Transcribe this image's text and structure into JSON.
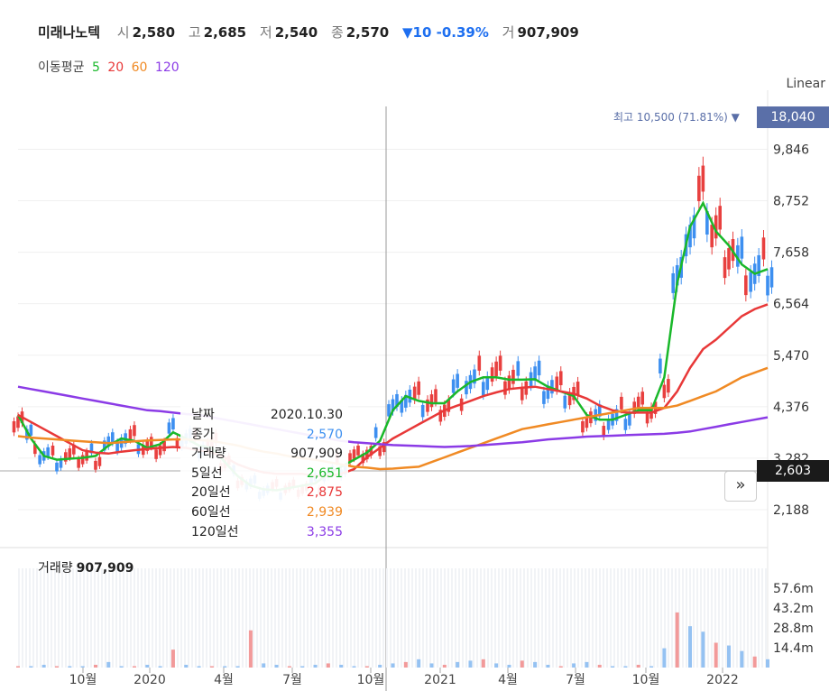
{
  "header": {
    "name": "미래나노텍",
    "open_label": "시",
    "open": "2,580",
    "high_label": "고",
    "high": "2,685",
    "low_label": "저",
    "low": "2,540",
    "close_label": "종",
    "close": "2,570",
    "change": "▼10 -0.39%",
    "volume_label": "거",
    "volume": "907,909"
  },
  "ma_legend": {
    "title": "이동평균",
    "p5": "5",
    "p20": "20",
    "p60": "60",
    "p120": "120"
  },
  "scale_mode": "Linear",
  "colors": {
    "up": "#e8403f",
    "down": "#3d8ff0",
    "ma5": "#19b82a",
    "ma20": "#e83838",
    "ma60": "#f08a24",
    "ma120": "#8b3be6",
    "high_tag": "#5a6fa8",
    "current_tag": "#1a1a1a"
  },
  "price_tags": {
    "high": "18,040",
    "current": "2,603"
  },
  "high_marker": {
    "label": "최고",
    "value": "10,500 (71.81%)"
  },
  "tooltip": {
    "rows": [
      {
        "label": "날짜",
        "value": "2020.10.30"
      },
      {
        "label": "종가",
        "value": "2,570"
      },
      {
        "label": "거래량",
        "value": "907,909"
      },
      {
        "label": "5일선",
        "value": "2,651"
      },
      {
        "label": "20일선",
        "value": "2,875"
      },
      {
        "label": "60일선",
        "value": "2,939"
      },
      {
        "label": "120일선",
        "value": "3,355"
      }
    ]
  },
  "volume_panel": {
    "label": "거래량",
    "value": "907,909"
  },
  "chart_data": {
    "type": "line",
    "price_ticks": [
      "9,846",
      "8,752",
      "7,658",
      "6,564",
      "5,470",
      "4,376",
      "3,282",
      "2,188"
    ],
    "volume_ticks": [
      "57.6m",
      "43.2m",
      "28.8m",
      "14.4m"
    ],
    "x_ticks": [
      "10월",
      "2020",
      "4월",
      "7월",
      "10월",
      "2021",
      "4월",
      "7월",
      "10월",
      "2022"
    ],
    "ylim": [
      1900,
      10400
    ],
    "volume_ylim": [
      0,
      72
    ],
    "series": [
      {
        "name": "5",
        "values": [
          4200,
          3700,
          3330,
          3250,
          3270,
          3290,
          3330,
          3550,
          3700,
          3650,
          3500,
          3580,
          3830,
          3700,
          3550,
          3500,
          3200,
          2900,
          2700,
          2620,
          2600,
          2650,
          2700,
          2750,
          2950,
          3100,
          3250,
          3400,
          3650,
          4300,
          4600,
          4500,
          4450,
          4450,
          4700,
          4900,
          5000,
          5000,
          4950,
          4950,
          4960,
          4800,
          4700,
          4600,
          4200,
          4100,
          4100,
          4200,
          4300,
          4300,
          5000,
          7000,
          8200,
          8700,
          8100,
          7800,
          7400,
          7200,
          7300
        ]
      },
      {
        "name": "20",
        "values": [
          4200,
          4050,
          3900,
          3750,
          3600,
          3450,
          3400,
          3380,
          3420,
          3450,
          3480,
          3500,
          3520,
          3500,
          3450,
          3400,
          3300,
          3150,
          3050,
          2980,
          2950,
          2950,
          2950,
          2900,
          2900,
          2950,
          3050,
          3300,
          3500,
          3700,
          3850,
          4000,
          4150,
          4300,
          4400,
          4500,
          4600,
          4680,
          4750,
          4780,
          4800,
          4750,
          4700,
          4650,
          4550,
          4400,
          4300,
          4250,
          4250,
          4250,
          4350,
          4700,
          5200,
          5600,
          5800,
          6050,
          6300,
          6450,
          6550
        ]
      },
      {
        "name": "60",
        "values": [
          3750,
          3720,
          3700,
          3680,
          3660,
          3640,
          3620,
          3600,
          3620,
          3640,
          3660,
          3670,
          3680,
          3680,
          3670,
          3650,
          3600,
          3550,
          3480,
          3420,
          3380,
          3320,
          3280,
          3250,
          3200,
          3150,
          3100,
          3080,
          3050,
          3060,
          3080,
          3100,
          3200,
          3300,
          3400,
          3500,
          3600,
          3700,
          3800,
          3900,
          3950,
          4000,
          4050,
          4100,
          4150,
          4200,
          4250,
          4300,
          4350,
          4350,
          4350,
          4400,
          4500,
          4600,
          4700,
          4850,
          5000,
          5100,
          5200
        ]
      },
      {
        "name": "120",
        "values": [
          4800,
          4750,
          4700,
          4650,
          4600,
          4550,
          4500,
          4450,
          4400,
          4350,
          4300,
          4280,
          4250,
          4220,
          4200,
          4150,
          4100,
          4050,
          4000,
          3950,
          3900,
          3850,
          3800,
          3750,
          3700,
          3650,
          3620,
          3600,
          3580,
          3560,
          3550,
          3540,
          3530,
          3520,
          3530,
          3540,
          3560,
          3580,
          3600,
          3620,
          3650,
          3680,
          3700,
          3720,
          3740,
          3750,
          3760,
          3770,
          3780,
          3790,
          3800,
          3820,
          3850,
          3900,
          3950,
          4000,
          4050,
          4100,
          4150
        ]
      }
    ],
    "volume_values": [
      1,
      1,
      2,
      1,
      1,
      1,
      2,
      4,
      1,
      1,
      2,
      1,
      13,
      2,
      1,
      1,
      1,
      1,
      27,
      3,
      2,
      1,
      1,
      2,
      3,
      2,
      1,
      1,
      2,
      3,
      4,
      6,
      3,
      2,
      4,
      5,
      6,
      3,
      2,
      5,
      4,
      2,
      1,
      3,
      4,
      2,
      1,
      1,
      2,
      1,
      14,
      40,
      30,
      26,
      18,
      16,
      12,
      8,
      6
    ]
  }
}
